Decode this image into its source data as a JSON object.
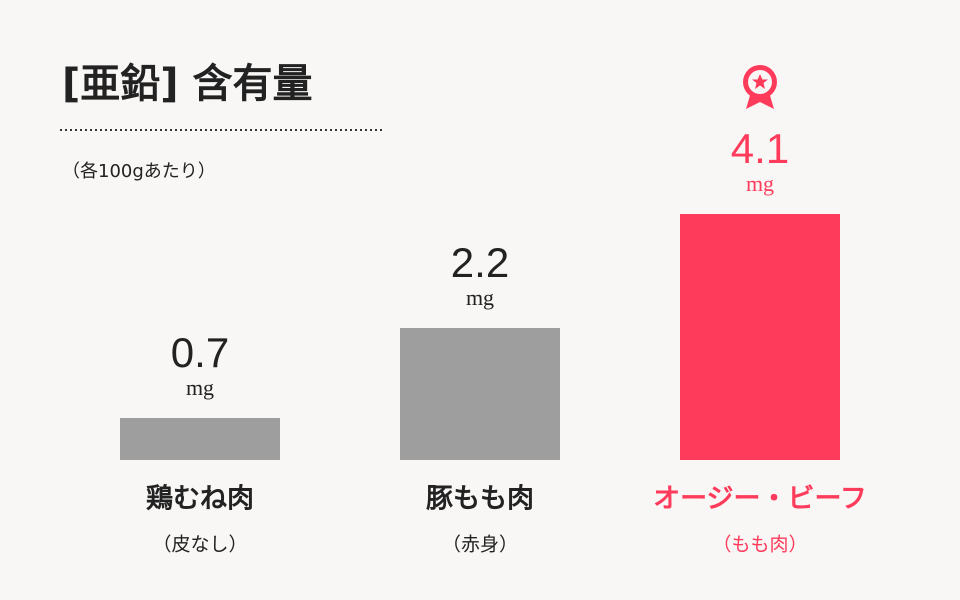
{
  "chart_data": {
    "type": "bar",
    "title": "[亜鉛] 含有量",
    "subtitle": "（各100gあたり）",
    "categories": [
      "鶏むね肉",
      "豚もも肉",
      "オージー・ビーフ"
    ],
    "category_notes": [
      "（皮なし）",
      "（赤身）",
      "（もも肉）"
    ],
    "values": [
      0.7,
      2.2,
      4.1
    ],
    "unit": "mg",
    "colors": [
      "#9e9e9e",
      "#9e9e9e",
      "#ff3b5c"
    ],
    "ylim": [
      0,
      4.1
    ]
  }
}
